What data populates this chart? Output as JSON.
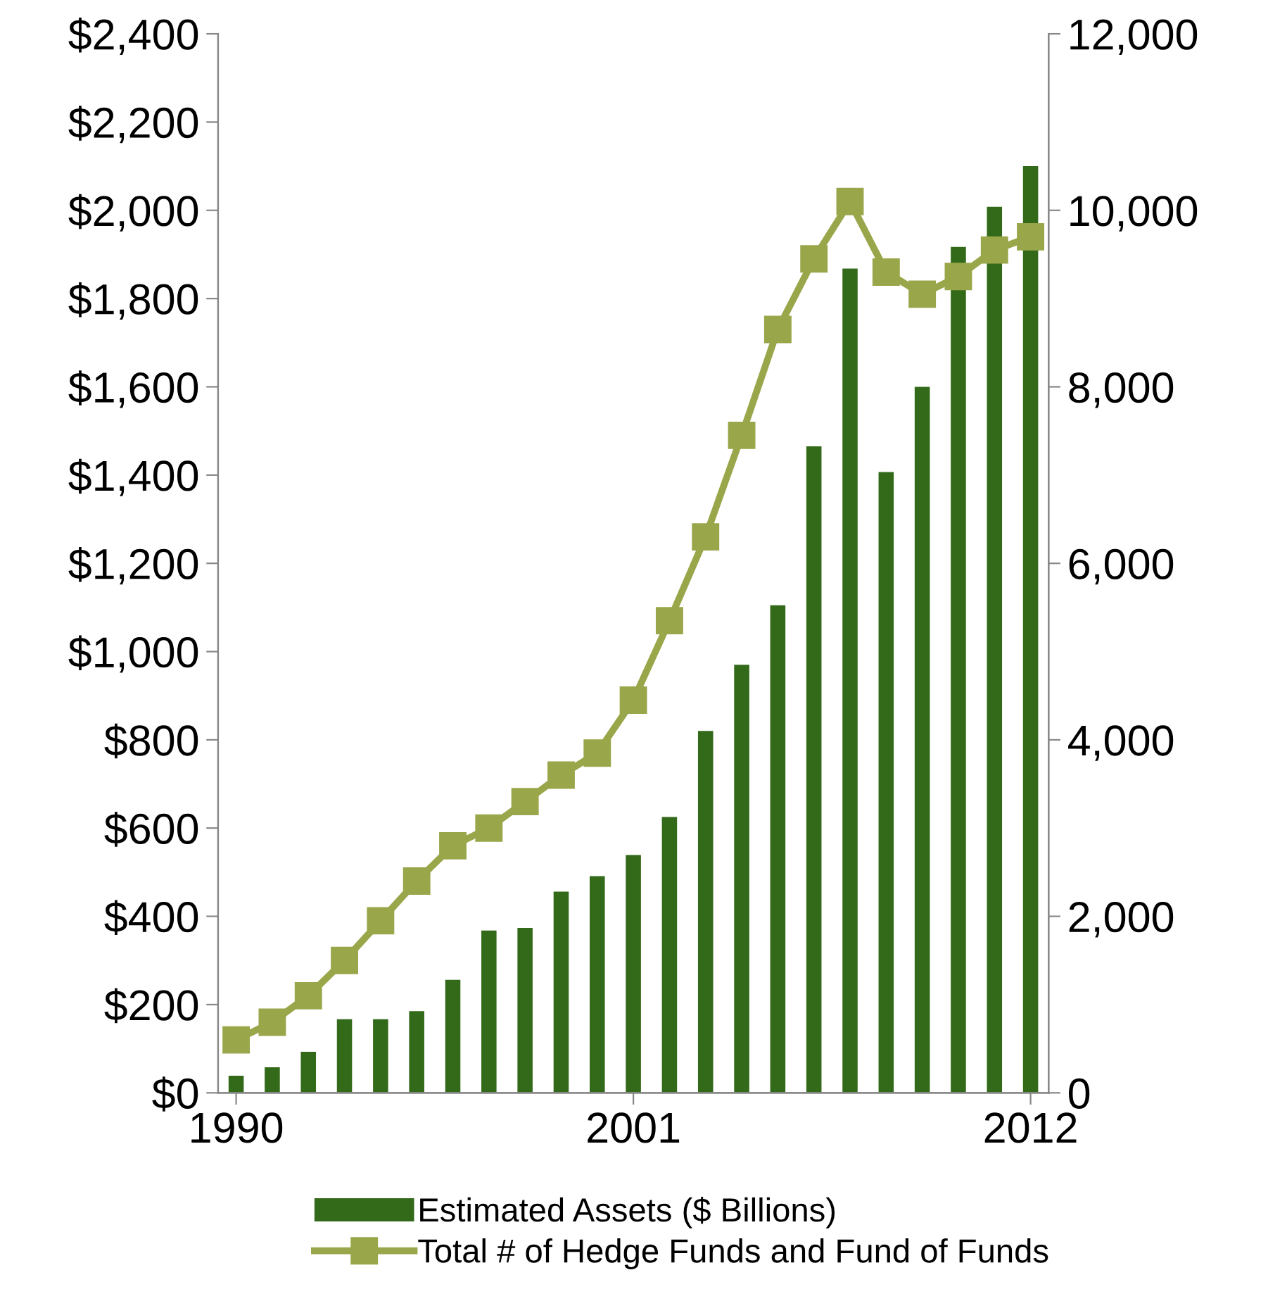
{
  "chart_data": {
    "type": "bar",
    "x": [
      1990,
      1991,
      1992,
      1993,
      1994,
      1995,
      1996,
      1997,
      1998,
      1999,
      2000,
      2001,
      2002,
      2003,
      2004,
      2005,
      2006,
      2007,
      2008,
      2009,
      2010,
      2011,
      2012
    ],
    "series": [
      {
        "name": "Estimated Assets ($ Billions)",
        "color": "#336a1a",
        "values": [
          39,
          58,
          93,
          167,
          167,
          185,
          256,
          368,
          374,
          456,
          491,
          539,
          625,
          820,
          970,
          1105,
          1465,
          1868,
          1407,
          1600,
          1917,
          2008,
          2100
        ]
      },
      {
        "name": "Total # of Hedge Funds and Fund of Funds",
        "type": "line",
        "axis": "y2",
        "color": "#9aa64a",
        "marker": "square",
        "values": [
          600,
          800,
          1100,
          1500,
          1950,
          2400,
          2800,
          3000,
          3300,
          3600,
          3850,
          4450,
          5350,
          6300,
          7450,
          8650,
          9450,
          10100,
          9300,
          9050,
          9250,
          9550,
          9700
        ]
      }
    ],
    "xlim": [
      1989.5,
      2012.5
    ],
    "xticks": [
      1990,
      2001,
      2012
    ],
    "ylim": [
      0,
      2400
    ],
    "yticks": [
      {
        "value": 0,
        "label": "$0"
      },
      {
        "value": 200,
        "label": "$200"
      },
      {
        "value": 400,
        "label": "$400"
      },
      {
        "value": 600,
        "label": "$600"
      },
      {
        "value": 800,
        "label": "$800"
      },
      {
        "value": 1000,
        "label": "$1,000"
      },
      {
        "value": 1200,
        "label": "$1,200"
      },
      {
        "value": 1400,
        "label": "$1,400"
      },
      {
        "value": 1600,
        "label": "$1,600"
      },
      {
        "value": 1800,
        "label": "$1,800"
      },
      {
        "value": 2000,
        "label": "$2,000"
      },
      {
        "value": 2200,
        "label": "$2,200"
      },
      {
        "value": 2400,
        "label": "$2,400"
      }
    ],
    "y2lim": [
      0,
      12000
    ],
    "y2ticks": [
      0,
      {
        "value": 2000,
        "label": "2,000"
      },
      {
        "value": 4000,
        "label": "4,000"
      },
      {
        "value": 6000,
        "label": "6,000"
      },
      {
        "value": 8000,
        "label": "8,000"
      },
      {
        "value": 10000,
        "label": "10,000"
      },
      {
        "value": 12000,
        "label": "12,000"
      }
    ],
    "grid": false,
    "legend": "bottom"
  }
}
